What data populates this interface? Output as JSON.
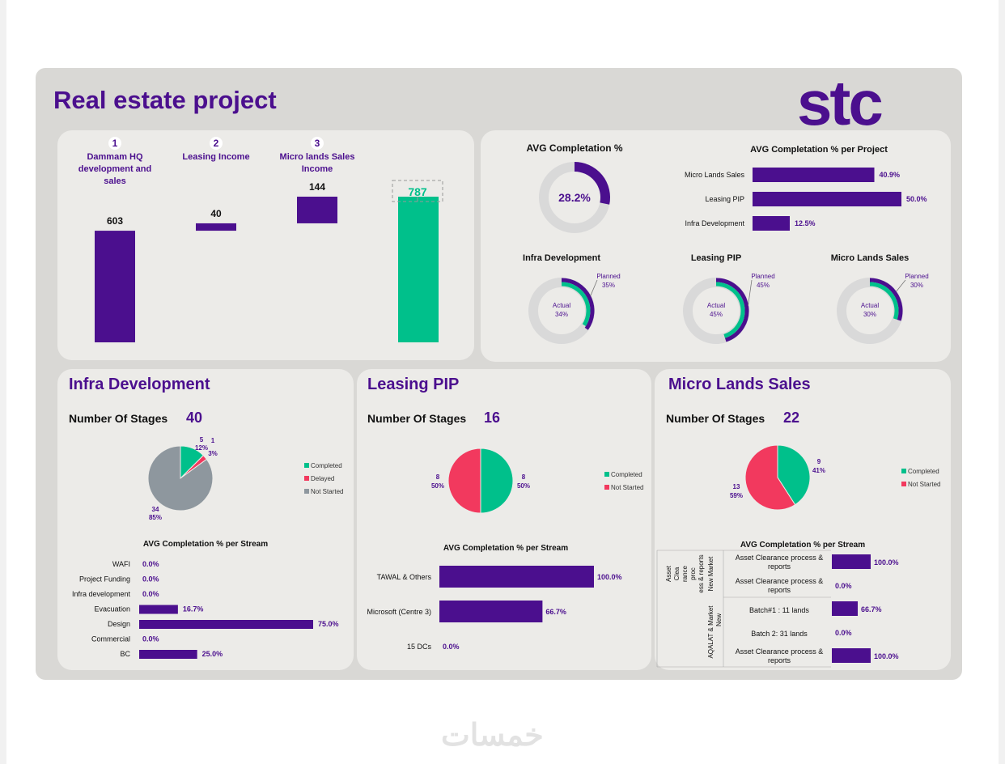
{
  "header": {
    "title": "Real estate project",
    "logo": "stc"
  },
  "colors": {
    "purple": "#4b0f8e",
    "green": "#00c08b",
    "red": "#f2395e",
    "grey": "#8e979e",
    "track": "#d9d9d9"
  },
  "waterfall": {
    "items": [
      {
        "num": "1",
        "label": "Dammam HQ development and sales",
        "value": 603
      },
      {
        "num": "2",
        "label": "Leasing Income",
        "value": 40
      },
      {
        "num": "3",
        "label": "Micro lands Sales Income",
        "value": 144
      }
    ],
    "total": 787
  },
  "avg": {
    "title": "AVG Completation %",
    "value": 28.2,
    "value_label": "28.2%"
  },
  "per_project": {
    "title": "AVG Completation % per Project",
    "items": [
      {
        "label": "Micro Lands Sales",
        "value": 40.9,
        "value_label": "40.9%"
      },
      {
        "label": "Leasing PIP",
        "value": 50.0,
        "value_label": "50.0%"
      },
      {
        "label": "Infra Development",
        "value": 12.5,
        "value_label": "12.5%"
      }
    ]
  },
  "donuts": [
    {
      "title": "Infra Development",
      "actual": 34,
      "planned": 35,
      "actual_label": "Actual",
      "actual_pct": "34%",
      "planned_label": "Planned",
      "planned_pct": "35%"
    },
    {
      "title": "Leasing PIP",
      "actual": 45,
      "planned": 45,
      "actual_label": "Actual",
      "actual_pct": "45%",
      "planned_label": "Planned",
      "planned_pct": "45%"
    },
    {
      "title": "Micro Lands Sales",
      "actual": 30,
      "planned": 30,
      "actual_label": "Actual",
      "actual_pct": "30%",
      "planned_label": "Planned",
      "planned_pct": "30%"
    }
  ],
  "streams": [
    {
      "title": "Infra Development",
      "stages_label": "Number Of Stages",
      "stages": "40",
      "pie": [
        {
          "name": "Completed",
          "value": 5,
          "pct": "12%"
        },
        {
          "name": "Delayed",
          "value": 1,
          "pct": "3%"
        },
        {
          "name": "Not Started",
          "value": 34,
          "pct": "85%"
        }
      ],
      "bars_title": "AVG Completation % per Stream",
      "bars": [
        {
          "label": "WAFI",
          "value": 0,
          "value_label": "0.0%"
        },
        {
          "label": "Project Funding",
          "value": 0,
          "value_label": "0.0%"
        },
        {
          "label": "Infra development",
          "value": 0,
          "value_label": "0.0%"
        },
        {
          "label": "Evacuation",
          "value": 16.7,
          "value_label": "16.7%"
        },
        {
          "label": "Design",
          "value": 75.0,
          "value_label": "75.0%"
        },
        {
          "label": "Commercial",
          "value": 0,
          "value_label": "0.0%"
        },
        {
          "label": "BC",
          "value": 25.0,
          "value_label": "25.0%"
        }
      ]
    },
    {
      "title": "Leasing PIP",
      "stages_label": "Number Of Stages",
      "stages": "16",
      "pie": [
        {
          "name": "Completed",
          "value": 8,
          "pct": "50%"
        },
        {
          "name": "Not Started",
          "value": 8,
          "pct": "50%"
        }
      ],
      "bars_title": "AVG Completation % per Stream",
      "bars": [
        {
          "label": "TAWAL & Others",
          "value": 100.0,
          "value_label": "100.0%"
        },
        {
          "label": "Microsoft (Centre 3)",
          "value": 66.7,
          "value_label": "66.7%"
        },
        {
          "label": "15 DCs",
          "value": 0,
          "value_label": "0.0%"
        }
      ]
    },
    {
      "title": "Micro Lands Sales",
      "stages_label": "Number Of Stages",
      "stages": "22",
      "pie": [
        {
          "name": "Completed",
          "value": 9,
          "pct": "41%"
        },
        {
          "name": "Not Started",
          "value": 13,
          "pct": "59%"
        }
      ],
      "bars_title": "AVG Completation % per Stream",
      "groups": [
        {
          "label": "Asset Clearance process & reports",
          "sub": "New Market"
        },
        {
          "label": "AQALAT & Market",
          "sub": "New"
        }
      ],
      "bars": [
        {
          "label": "Asset Clearance process & reports",
          "value": 100.0,
          "value_label": "100.0%"
        },
        {
          "label": "Asset Clearance process & reports",
          "value": 0,
          "value_label": "0.0%"
        },
        {
          "label": "Batch#1 : 11 lands",
          "value": 66.7,
          "value_label": "66.7%"
        },
        {
          "label": "Batch 2: 31 lands",
          "value": 0,
          "value_label": "0.0%"
        },
        {
          "label": "Asset Clearance process & reports",
          "value": 100.0,
          "value_label": "100.0%"
        }
      ]
    }
  ],
  "chart_data": [
    {
      "type": "bar",
      "title": "",
      "categories": [
        "Dammam HQ development and sales",
        "Leasing Income",
        "Micro lands Sales Income",
        ""
      ],
      "values": [
        603,
        40,
        144,
        787
      ]
    },
    {
      "type": "pie",
      "title": "AVG Completation %",
      "values": [
        28.2
      ]
    },
    {
      "type": "bar",
      "title": "AVG Completation % per Project",
      "categories": [
        "Micro Lands Sales",
        "Leasing PIP",
        "Infra Development"
      ],
      "values": [
        40.9,
        50.0,
        12.5
      ]
    },
    {
      "type": "pie",
      "title": "Infra Development",
      "series": [
        {
          "name": "Actual",
          "values": [
            34
          ]
        },
        {
          "name": "Planned",
          "values": [
            35
          ]
        }
      ]
    },
    {
      "type": "pie",
      "title": "Leasing PIP",
      "series": [
        {
          "name": "Actual",
          "values": [
            45
          ]
        },
        {
          "name": "Planned",
          "values": [
            45
          ]
        }
      ]
    },
    {
      "type": "pie",
      "title": "Micro Lands Sales",
      "series": [
        {
          "name": "Actual",
          "values": [
            30
          ]
        },
        {
          "name": "Planned",
          "values": [
            30
          ]
        }
      ]
    },
    {
      "type": "pie",
      "title": "",
      "categories": [
        "Completed",
        "Delayed",
        "Not Started"
      ],
      "values": [
        5,
        1,
        34
      ]
    },
    {
      "type": "bar",
      "title": "AVG Completation % per Stream",
      "categories": [
        "WAFI",
        "Project Funding",
        "Infra development",
        "Evacuation",
        "Design",
        "Commercial",
        "BC"
      ],
      "values": [
        0,
        0,
        0,
        16.7,
        75.0,
        0,
        25.0
      ]
    },
    {
      "type": "pie",
      "title": "",
      "categories": [
        "Completed",
        "Not Started"
      ],
      "values": [
        8,
        8
      ]
    },
    {
      "type": "bar",
      "title": "AVG Completation % per Stream",
      "categories": [
        "TAWAL & Others",
        "Microsoft (Centre 3)",
        "15 DCs"
      ],
      "values": [
        100.0,
        66.7,
        0
      ]
    },
    {
      "type": "pie",
      "title": "",
      "categories": [
        "Completed",
        "Not Started"
      ],
      "values": [
        9,
        13
      ]
    },
    {
      "type": "bar",
      "title": "AVG Completation % per Stream",
      "categories": [
        "Asset Clearance process & reports",
        "Asset Clearance process & reports",
        "Batch#1 : 11 lands",
        "Batch 2: 31 lands",
        "Asset Clearance process & reports"
      ],
      "values": [
        100.0,
        0,
        66.7,
        0,
        100.0
      ]
    }
  ]
}
